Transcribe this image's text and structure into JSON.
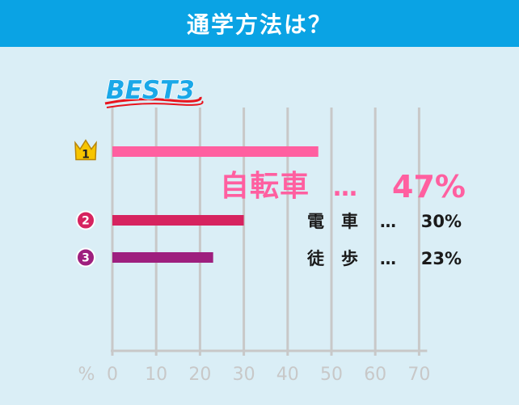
{
  "header": {
    "title": "通学方法は？"
  },
  "badge": {
    "text": "BEST3"
  },
  "colors": {
    "header_bg": "#0aa3e4",
    "panel_bg": "#daeef6",
    "rank1": "#ff5fa0",
    "rank2": "#d6235f",
    "rank3": "#9e1f7e",
    "grid": "#c8c8c8",
    "tick": "#c8c8c8",
    "badge_blue": "#1aa8e8",
    "badge_red": "#e8141e",
    "crown": "#f7c500"
  },
  "chart_data": {
    "type": "bar",
    "orientation": "horizontal",
    "categories": [
      "自転車",
      "電　車",
      "徒　歩"
    ],
    "values": [
      47,
      30,
      23
    ],
    "value_labels": [
      "47%",
      "30%",
      "23%"
    ],
    "separator": "…",
    "ranks": [
      "1",
      "2",
      "3"
    ],
    "x_unit_label": "%",
    "x_ticks": [
      "0",
      "10",
      "20",
      "30",
      "40",
      "50",
      "60",
      "70"
    ],
    "xlim": [
      0,
      70
    ],
    "grid": true
  }
}
